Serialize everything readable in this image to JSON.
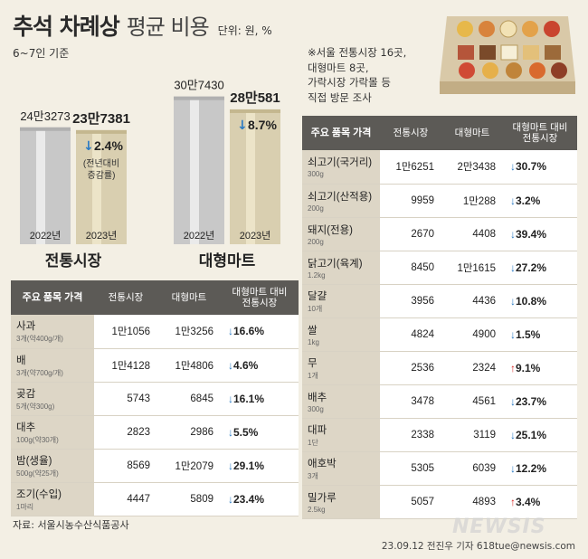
{
  "header": {
    "title_bold": "추석 차례상",
    "title_light": "평균 비용",
    "unit": "단위: 원, %",
    "subnote": "6~7인 기준"
  },
  "note": "※서울 전통시장 16곳,\n 대형마트 8곳,\n 가락시장 가락몰 등\n 직접 방문 조사",
  "chart_data": {
    "type": "bar",
    "groups": [
      {
        "name": "전통시장",
        "categories": [
          "2022년",
          "2023년"
        ],
        "values": [
          243273,
          237381
        ],
        "labels": [
          "24만3273",
          "23만7381"
        ],
        "change": "2.4%",
        "change_note": "(전년대비\n증감률)"
      },
      {
        "name": "대형마트",
        "categories": [
          "2022년",
          "2023년"
        ],
        "values": [
          307430,
          280581
        ],
        "labels": [
          "30만7430",
          "28만581"
        ],
        "change": "8.7%"
      }
    ],
    "colors": {
      "y2022": "#c8c8c8",
      "y2023": "#d9cfb0"
    }
  },
  "table_headers": {
    "item": "주요 품목 가격",
    "market": "전통시장",
    "mart": "대형마트",
    "diff": "대형마트 대비\n전통시장"
  },
  "left_table": [
    {
      "name": "사과",
      "unit": "3개(약400g/개)",
      "market": "1만1056",
      "mart": "1만3256",
      "dir": "down",
      "chg": "16.6%"
    },
    {
      "name": "배",
      "unit": "3개(약700g/개)",
      "market": "1만4128",
      "mart": "1만4806",
      "dir": "down",
      "chg": "4.6%"
    },
    {
      "name": "곶감",
      "unit": "5개(약300g)",
      "market": "5743",
      "mart": "6845",
      "dir": "down",
      "chg": "16.1%"
    },
    {
      "name": "대추",
      "unit": "100g(약30개)",
      "market": "2823",
      "mart": "2986",
      "dir": "down",
      "chg": "5.5%"
    },
    {
      "name": "밤(생율)",
      "unit": "500g(약25개)",
      "market": "8569",
      "mart": "1만2079",
      "dir": "down",
      "chg": "29.1%"
    },
    {
      "name": "조기(수입)",
      "unit": "1마리",
      "market": "4447",
      "mart": "5809",
      "dir": "down",
      "chg": "23.4%"
    }
  ],
  "right_table": [
    {
      "name": "쇠고기(국거리)",
      "unit": "300g",
      "market": "1만6251",
      "mart": "2만3438",
      "dir": "down",
      "chg": "30.7%"
    },
    {
      "name": "쇠고기(산적용)",
      "unit": "200g",
      "market": "9959",
      "mart": "1만288",
      "dir": "down",
      "chg": "3.2%"
    },
    {
      "name": "돼지(전용)",
      "unit": "200g",
      "market": "2670",
      "mart": "4408",
      "dir": "down",
      "chg": "39.4%"
    },
    {
      "name": "닭고기(육계)",
      "unit": "1.2kg",
      "market": "8450",
      "mart": "1만1615",
      "dir": "down",
      "chg": "27.2%"
    },
    {
      "name": "달걀",
      "unit": "10개",
      "market": "3956",
      "mart": "4436",
      "dir": "down",
      "chg": "10.8%"
    },
    {
      "name": "쌀",
      "unit": "1kg",
      "market": "4824",
      "mart": "4900",
      "dir": "down",
      "chg": "1.5%"
    },
    {
      "name": "무",
      "unit": "1개",
      "market": "2536",
      "mart": "2324",
      "dir": "up",
      "chg": "9.1%"
    },
    {
      "name": "배추",
      "unit": "300g",
      "market": "3478",
      "mart": "4561",
      "dir": "down",
      "chg": "23.7%"
    },
    {
      "name": "대파",
      "unit": "1단",
      "market": "2338",
      "mart": "3119",
      "dir": "down",
      "chg": "25.1%"
    },
    {
      "name": "애호박",
      "unit": "3개",
      "market": "5305",
      "mart": "6039",
      "dir": "down",
      "chg": "12.2%"
    },
    {
      "name": "밀가루",
      "unit": "2.5kg",
      "market": "5057",
      "mart": "4893",
      "dir": "up",
      "chg": "3.4%"
    }
  ],
  "footer": {
    "source": "자료: 서울시농수산식품공사",
    "credit": "23.09.12 전진우 기자 618tue@newsis.com",
    "watermark": "NEWSIS"
  },
  "arrows": {
    "down": "↓",
    "up": "↑"
  }
}
